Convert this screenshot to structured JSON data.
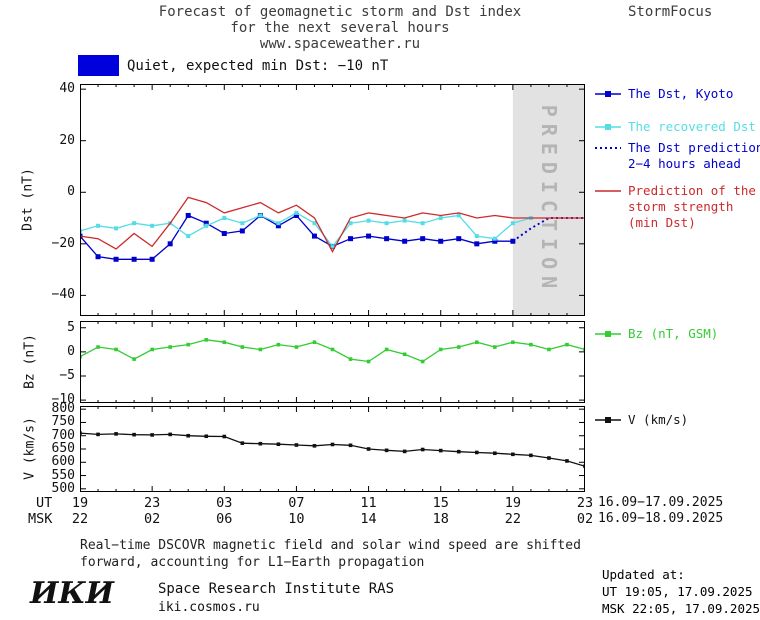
{
  "header": {
    "title_line1": "Forecast of geomagnetic storm and Dst index",
    "title_line2": "for the next several hours",
    "title_line3": "www.spaceweather.ru",
    "brand": "StormFocus"
  },
  "status": {
    "label": "Quiet, expected min Dst: −10 nT",
    "color": "#0000dd"
  },
  "prediction_band": {
    "label": "PREDICTION",
    "start_hour": 24,
    "end_hour": 28
  },
  "legend": {
    "kyoto": {
      "line1": "The Dst, Kyoto",
      "color": "#0000cc",
      "marker": "square",
      "style": "solid"
    },
    "recovered": {
      "line1": "The recovered Dst",
      "color": "#55dde6",
      "marker": "square",
      "style": "solid"
    },
    "dst_prediction": {
      "line1": "The Dst prediction",
      "line2": "2−4 hours ahead",
      "color": "#0000cc",
      "marker": "none",
      "style": "dotted"
    },
    "storm": {
      "line1": "Prediction of the",
      "line2": "storm strength",
      "line3": "(min Dst)",
      "color": "#cc2a2a",
      "marker": "none",
      "style": "solid"
    },
    "bz": {
      "line1": "Bz (nT, GSM)",
      "color": "#33cc33",
      "marker": "square",
      "style": "solid"
    },
    "v": {
      "line1": "V (km/s)",
      "color": "#111111",
      "marker": "square",
      "style": "solid"
    }
  },
  "xaxis": {
    "ut_label": "UT",
    "msk_label": "MSK",
    "ut_ticks": [
      "19",
      "23",
      "03",
      "07",
      "11",
      "15",
      "19",
      "23"
    ],
    "msk_ticks": [
      "22",
      "02",
      "06",
      "10",
      "14",
      "18",
      "22",
      "02"
    ],
    "ut_date": "16.09−17.09.2025",
    "msk_date": "16.09−18.09.2025"
  },
  "footnote_line1": "Real−time DSCOVR magnetic field and solar wind speed are shifted",
  "footnote_line2": "forward, accounting for L1−Earth propagation",
  "updated": {
    "title": "Updated at:",
    "ut": "UT  19:05, 17.09.2025",
    "msk": "MSK 22:05, 17.09.2025"
  },
  "footer": {
    "logo": "ИКИ",
    "institute": "Space Research Institute RAS",
    "site": "iki.cosmos.ru"
  },
  "chart_data": [
    {
      "type": "line",
      "ylabel": "Dst (nT)",
      "ylim": [
        -48,
        42
      ],
      "yticks": [
        40,
        20,
        0,
        -20,
        -40
      ],
      "xlim": [
        0,
        28
      ],
      "xtick_hours": [
        0,
        4,
        8,
        12,
        16,
        20,
        24,
        28
      ],
      "prediction_band": [
        24,
        28
      ],
      "series": [
        {
          "name": "The Dst, Kyoto",
          "color": "#0000cc",
          "marker": "square",
          "msize": 5,
          "line": "solid",
          "x": [
            0,
            1,
            2,
            3,
            4,
            5,
            6,
            7,
            8,
            9,
            10,
            11,
            12,
            13,
            14,
            15,
            16,
            17,
            18,
            19,
            20,
            21,
            22,
            23,
            24
          ],
          "y": [
            -17,
            -25,
            -26,
            -26,
            -26,
            -20,
            -9,
            -12,
            -16,
            -15,
            -9,
            -13,
            -9,
            -17,
            -21,
            -18,
            -17,
            -18,
            -19,
            -18,
            -19,
            -18,
            -20,
            -19,
            -19
          ]
        },
        {
          "name": "The recovered Dst",
          "color": "#55dde6",
          "marker": "square",
          "msize": 4,
          "line": "solid",
          "x": [
            0,
            1,
            2,
            3,
            4,
            5,
            6,
            7,
            8,
            9,
            10,
            11,
            12,
            13,
            14,
            15,
            16,
            17,
            18,
            19,
            20,
            21,
            22,
            23,
            24,
            25
          ],
          "y": [
            -15,
            -13,
            -14,
            -12,
            -13,
            -12,
            -17,
            -13,
            -10,
            -12,
            -9,
            -12,
            -8,
            -12,
            -21,
            -12,
            -11,
            -12,
            -11,
            -12,
            -10,
            -9,
            -17,
            -18,
            -12,
            -10
          ]
        },
        {
          "name": "The Dst prediction 2−4 hours ahead",
          "color": "#0000cc",
          "marker": "none",
          "line": "dotted",
          "x": [
            24,
            25,
            26,
            27,
            28
          ],
          "y": [
            -19,
            -14,
            -10,
            -10,
            -10
          ]
        },
        {
          "name": "Prediction of the storm strength (min Dst)",
          "color": "#cc2a2a",
          "marker": "none",
          "line": "solid",
          "x": [
            0,
            1,
            2,
            3,
            4,
            5,
            6,
            7,
            8,
            9,
            10,
            11,
            12,
            13,
            14,
            15,
            16,
            17,
            18,
            19,
            20,
            21,
            22,
            23,
            24,
            25,
            26,
            27,
            28
          ],
          "y": [
            -17,
            -18,
            -22,
            -16,
            -21,
            -12,
            -2,
            -4,
            -8,
            -6,
            -4,
            -8,
            -5,
            -10,
            -23,
            -10,
            -8,
            -9,
            -10,
            -8,
            -9,
            -8,
            -10,
            -9,
            -10,
            -10,
            -10,
            -10,
            -10
          ]
        }
      ]
    },
    {
      "type": "line",
      "ylabel": "Bz (nT)",
      "ylim": [
        -10.6,
        6.4
      ],
      "yticks": [
        5,
        0,
        -5,
        -10
      ],
      "xlim": [
        0,
        28
      ],
      "xtick_hours": [
        0,
        4,
        8,
        12,
        16,
        20,
        24,
        28
      ],
      "series": [
        {
          "name": "Bz (nT, GSM)",
          "color": "#33cc33",
          "marker": "square",
          "msize": 3.6,
          "line": "solid",
          "x": [
            0,
            1,
            2,
            3,
            4,
            5,
            6,
            7,
            8,
            9,
            10,
            11,
            12,
            13,
            14,
            15,
            16,
            17,
            18,
            19,
            20,
            21,
            22,
            23,
            24,
            25,
            26,
            27,
            28
          ],
          "y": [
            -1,
            1,
            0.5,
            -1.5,
            0.5,
            1,
            1.5,
            2.5,
            2,
            1,
            0.5,
            1.5,
            1,
            2,
            0.5,
            -1.5,
            -2,
            0.5,
            -0.5,
            -2,
            0.5,
            1,
            2,
            1,
            2,
            1.5,
            0.5,
            1.5,
            0.5
          ]
        }
      ]
    },
    {
      "type": "line",
      "ylabel": "V (km/s)",
      "ylim": [
        488,
        812
      ],
      "yticks": [
        800,
        750,
        700,
        650,
        600,
        550,
        500
      ],
      "xlim": [
        0,
        28
      ],
      "xtick_hours": [
        0,
        4,
        8,
        12,
        16,
        20,
        24,
        28
      ],
      "series": [
        {
          "name": "V (km/s)",
          "color": "#111111",
          "marker": "square",
          "msize": 3.6,
          "line": "solid",
          "x": [
            0,
            1,
            2,
            3,
            4,
            5,
            6,
            7,
            8,
            9,
            10,
            11,
            12,
            13,
            14,
            15,
            16,
            17,
            18,
            19,
            20,
            21,
            22,
            23,
            24,
            25,
            26,
            27,
            28
          ],
          "y": [
            710,
            705,
            707,
            704,
            703,
            705,
            700,
            698,
            697,
            672,
            670,
            668,
            665,
            662,
            667,
            664,
            650,
            645,
            641,
            648,
            644,
            640,
            637,
            634,
            630,
            626,
            616,
            605,
            585
          ]
        }
      ]
    }
  ]
}
